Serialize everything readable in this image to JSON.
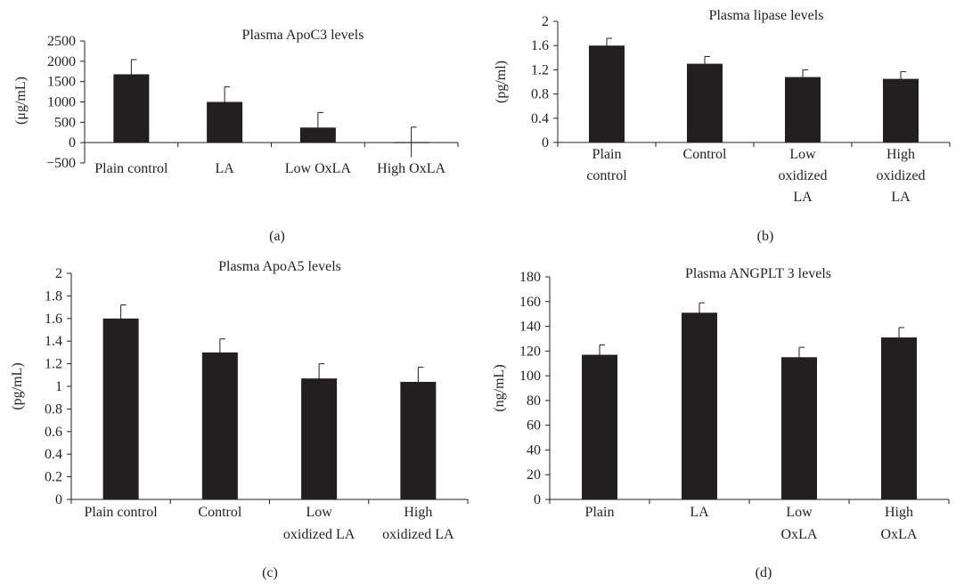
{
  "figure": {
    "panels": [
      "(a)",
      "(b)",
      "(c)",
      "(d)"
    ]
  },
  "chart_data": [
    {
      "type": "bar",
      "title": "Plasma ApoC3 levels",
      "ylabel": "(μg/mL)",
      "xlabel": "",
      "ylim": [
        -500,
        2500
      ],
      "yticks": [
        "−500",
        "0",
        "500",
        "1000",
        "1500",
        "2000",
        "2500"
      ],
      "categories": [
        [
          "Plain control"
        ],
        [
          "LA"
        ],
        [
          "Low OxLA"
        ],
        [
          "High OxLA"
        ]
      ],
      "values": [
        1680,
        1000,
        370,
        10
      ],
      "errors": [
        360,
        370,
        370,
        370
      ],
      "bar_color": "#231f20"
    },
    {
      "type": "bar",
      "title": "Plasma lipase levels",
      "ylabel": "(pg/ml)",
      "xlabel": "",
      "ylim": [
        0,
        2
      ],
      "yticks": [
        "0",
        "0.4",
        "0.8",
        "1.2",
        "1.6",
        "2"
      ],
      "categories": [
        [
          "Plain",
          "control"
        ],
        [
          "Control"
        ],
        [
          "Low",
          "oxidized",
          "LA"
        ],
        [
          "High",
          "oxidized",
          "LA"
        ]
      ],
      "values": [
        1.6,
        1.3,
        1.08,
        1.05
      ],
      "errors": [
        0.12,
        0.12,
        0.12,
        0.12
      ],
      "bar_color": "#231f20"
    },
    {
      "type": "bar",
      "title": "Plasma ApoA5 levels",
      "ylabel": "(pg/mL)",
      "xlabel": "",
      "ylim": [
        0,
        2
      ],
      "yticks": [
        "0",
        "0.2",
        "0.4",
        "0.6",
        "0.8",
        "1",
        "1.2",
        "1.4",
        "1.6",
        "1.8",
        "2"
      ],
      "categories": [
        [
          "Plain control"
        ],
        [
          "Control"
        ],
        [
          "Low",
          "oxidized LA"
        ],
        [
          "High",
          "oxidized LA"
        ]
      ],
      "values": [
        1.6,
        1.3,
        1.07,
        1.04
      ],
      "errors": [
        0.12,
        0.12,
        0.13,
        0.13
      ],
      "bar_color": "#231f20"
    },
    {
      "type": "bar",
      "title": "Plasma ANGPLT 3 levels",
      "ylabel": "(ng/mL)",
      "xlabel": "",
      "ylim": [
        0,
        180
      ],
      "yticks": [
        "0",
        "20",
        "40",
        "60",
        "80",
        "100",
        "120",
        "140",
        "160",
        "180"
      ],
      "categories": [
        [
          "Plain"
        ],
        [
          "LA"
        ],
        [
          "Low",
          "OxLA"
        ],
        [
          "High",
          "OxLA"
        ]
      ],
      "values": [
        117,
        151,
        115,
        131
      ],
      "errors": [
        8,
        8,
        8,
        8
      ],
      "bar_color": "#231f20"
    }
  ]
}
